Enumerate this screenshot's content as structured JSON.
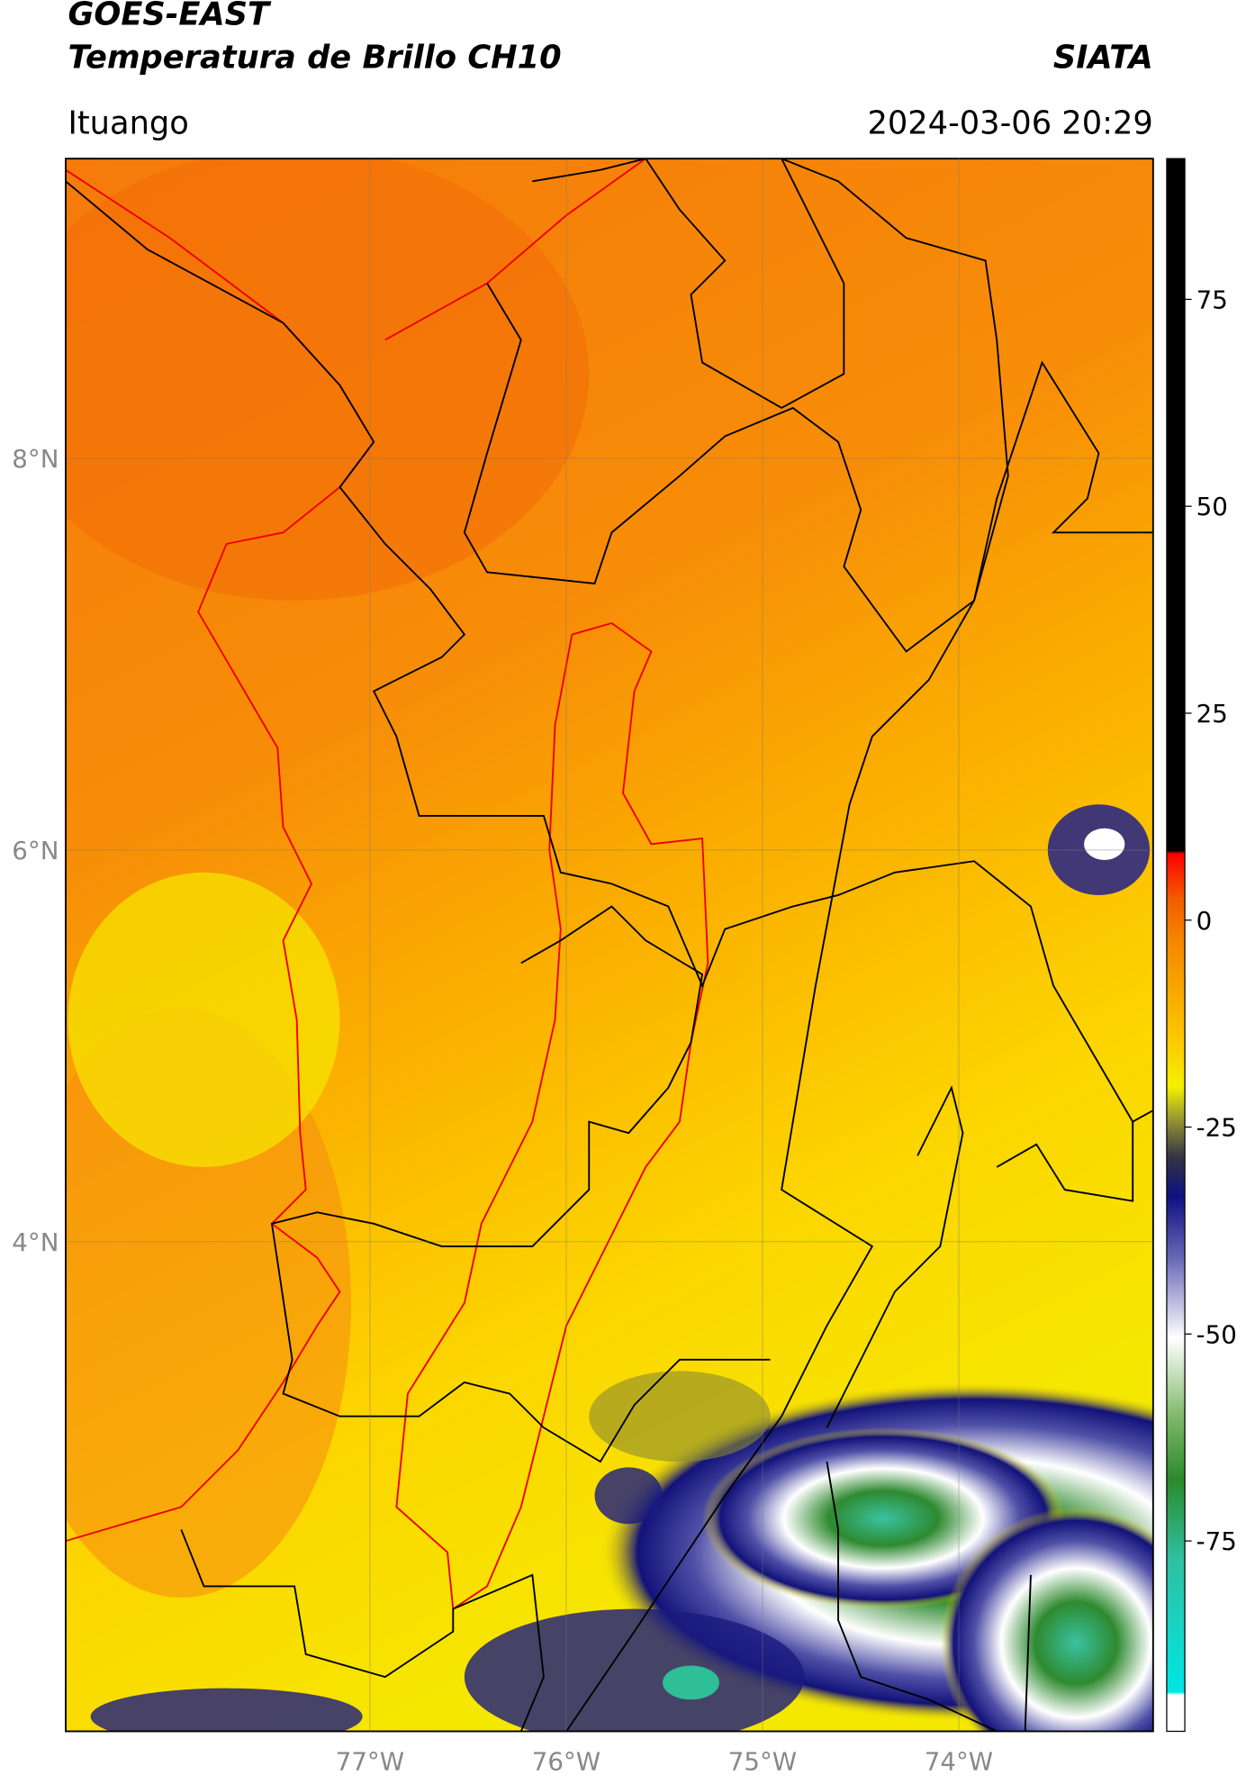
{
  "header": {
    "title": "GOES-EAST",
    "subtitle": "Temperatura de Brillo CH10",
    "brand": "SIATA",
    "location": "Ituango",
    "datetime": "2024-03-06 20:29"
  },
  "map": {
    "xlim": [
      -78.55,
      -73.01
    ],
    "ylim": [
      1.5,
      9.53
    ],
    "xticks": [
      {
        "value": -77,
        "label": "77°W"
      },
      {
        "value": -76,
        "label": "76°W"
      },
      {
        "value": -75,
        "label": "75°W"
      },
      {
        "value": -74,
        "label": "74°W"
      }
    ],
    "yticks": [
      {
        "value": 8,
        "label": "8°N"
      },
      {
        "value": 6,
        "label": "6°N"
      },
      {
        "value": 4,
        "label": "4°N"
      }
    ],
    "grid": true
  },
  "colorbar": {
    "lim": [
      -98,
      92
    ],
    "ticks": [
      75,
      50,
      25,
      0,
      -25,
      -50,
      -75
    ]
  }
}
